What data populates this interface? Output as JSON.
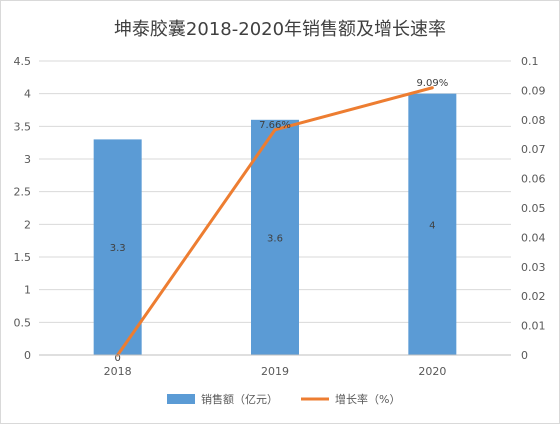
{
  "chart_data": {
    "type": "bar",
    "title": "坤泰胶囊2018-2020年销售额及增长速率",
    "categories": [
      "2018",
      "2019",
      "2020"
    ],
    "series": [
      {
        "name": "销售额（亿元）",
        "type": "bar",
        "axis": "left",
        "color": "#5b9bd5",
        "values": [
          3.3,
          3.6,
          4.0
        ],
        "data_labels": [
          "3.3",
          "3.6",
          "4"
        ]
      },
      {
        "name": "增长率（%）",
        "type": "line",
        "axis": "right",
        "color": "#ed7d31",
        "values": [
          0,
          0.0766,
          0.0909
        ],
        "data_labels": [
          "0",
          "7.66%",
          "9.09%"
        ]
      }
    ],
    "y_left": {
      "lim": [
        0,
        4.5
      ],
      "ticks": [
        "0",
        "0.5",
        "1",
        "1.5",
        "2",
        "2.5",
        "3",
        "3.5",
        "4",
        "4.5"
      ]
    },
    "y_right": {
      "lim": [
        0,
        0.1
      ],
      "ticks": [
        "0",
        "0.01",
        "0.02",
        "0.03",
        "0.04",
        "0.05",
        "0.06",
        "0.07",
        "0.08",
        "0.09",
        "0.1"
      ]
    },
    "grid": true,
    "legend_position": "bottom"
  }
}
